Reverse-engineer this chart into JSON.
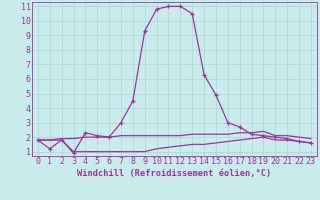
{
  "xlabel": "Windchill (Refroidissement éolien,°C)",
  "background_color": "#c8ecec",
  "grid_color": "#b0d8d8",
  "line_color": "#993399",
  "x_values": [
    0,
    1,
    2,
    3,
    4,
    5,
    6,
    7,
    8,
    9,
    10,
    11,
    12,
    13,
    14,
    15,
    16,
    17,
    18,
    19,
    20,
    21,
    22,
    23
  ],
  "series1": [
    1.8,
    1.2,
    1.8,
    0.9,
    2.3,
    2.1,
    2.0,
    3.0,
    4.5,
    9.3,
    10.8,
    11.0,
    11.0,
    10.5,
    6.3,
    4.9,
    3.0,
    2.7,
    2.2,
    2.1,
    2.0,
    1.9,
    1.7,
    1.6
  ],
  "series2": [
    1.8,
    1.8,
    1.9,
    1.9,
    2.0,
    2.0,
    2.0,
    2.1,
    2.1,
    2.1,
    2.1,
    2.1,
    2.1,
    2.2,
    2.2,
    2.2,
    2.2,
    2.3,
    2.3,
    2.4,
    2.1,
    2.1,
    2.0,
    1.9
  ],
  "series3": [
    1.8,
    1.8,
    1.8,
    1.0,
    1.0,
    1.0,
    1.0,
    1.0,
    1.0,
    1.0,
    1.2,
    1.3,
    1.4,
    1.5,
    1.5,
    1.6,
    1.7,
    1.8,
    1.9,
    2.0,
    1.8,
    1.8,
    1.7,
    1.6
  ],
  "ylim": [
    0.7,
    11.3
  ],
  "xlim": [
    -0.5,
    23.5
  ],
  "yticks": [
    1,
    2,
    3,
    4,
    5,
    6,
    7,
    8,
    9,
    10,
    11
  ],
  "xticks": [
    0,
    1,
    2,
    3,
    4,
    5,
    6,
    7,
    8,
    9,
    10,
    11,
    12,
    13,
    14,
    15,
    16,
    17,
    18,
    19,
    20,
    21,
    22,
    23
  ],
  "tick_fontsize": 6.0,
  "xlabel_fontsize": 6.2,
  "spine_color": "#993399"
}
